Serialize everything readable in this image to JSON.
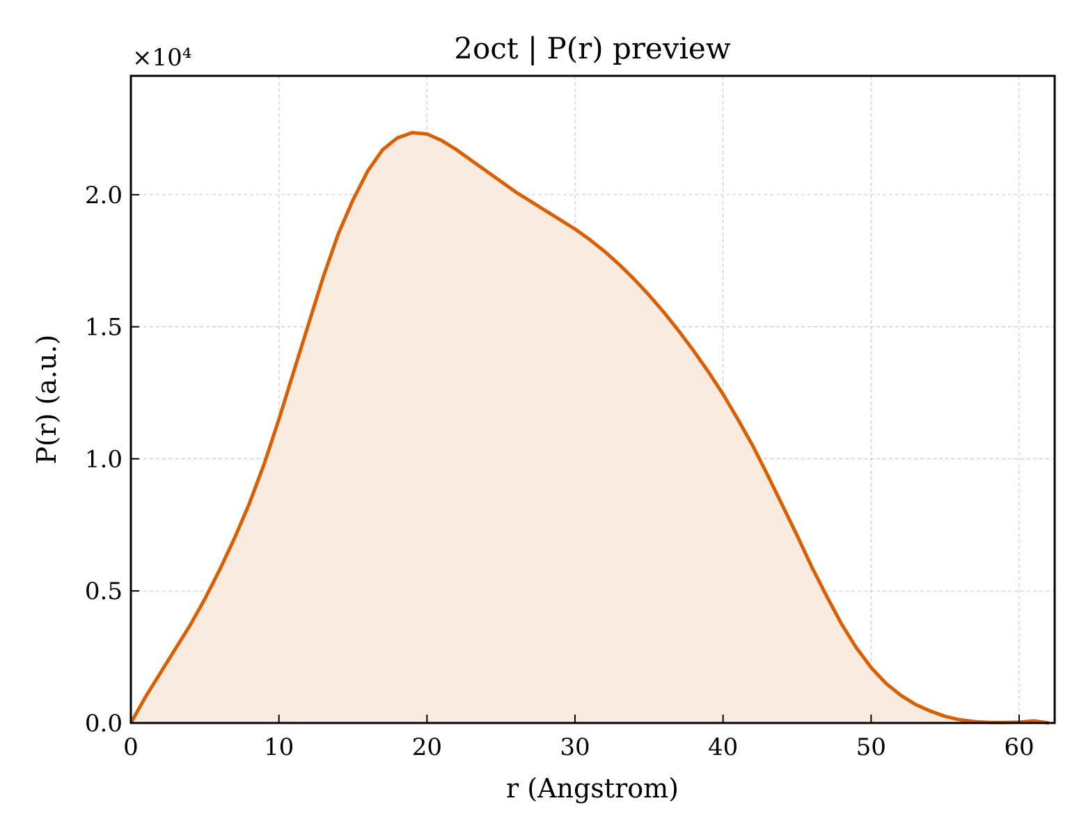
{
  "chart_data": {
    "type": "area",
    "title": "2oct | P(r) preview",
    "xlabel": "r (Angstrom)",
    "ylabel": "P(r) (a.u.)",
    "y_offset_text": "×10⁴",
    "xlim": [
      0,
      62.4
    ],
    "ylim": [
      0,
      2.45
    ],
    "x_ticks": [
      0,
      10,
      20,
      30,
      40,
      50,
      60
    ],
    "y_ticks": [
      0.0,
      0.5,
      1.0,
      1.5,
      2.0
    ],
    "x_tick_labels": [
      "0",
      "10",
      "20",
      "30",
      "40",
      "50",
      "60"
    ],
    "y_tick_labels": [
      "0.0",
      "0.5",
      "1.0",
      "1.5",
      "2.0"
    ],
    "grid": true,
    "line_color": "#d95f02",
    "fill_color": "#f9ebe0",
    "x": [
      0,
      1,
      2,
      3,
      4,
      5,
      6,
      7,
      8,
      9,
      10,
      11,
      12,
      13,
      14,
      15,
      16,
      17,
      18,
      19,
      20,
      21,
      22,
      23,
      24,
      25,
      26,
      27,
      28,
      29,
      30,
      31,
      32,
      33,
      34,
      35,
      36,
      37,
      38,
      39,
      40,
      41,
      42,
      43,
      44,
      45,
      46,
      47,
      48,
      49,
      50,
      51,
      52,
      53,
      54,
      55,
      56,
      57,
      58,
      59,
      60,
      61,
      62
    ],
    "y": [
      0.0,
      0.1,
      0.19,
      0.28,
      0.37,
      0.47,
      0.58,
      0.7,
      0.83,
      0.98,
      1.15,
      1.33,
      1.51,
      1.69,
      1.85,
      1.98,
      2.09,
      2.17,
      2.215,
      2.235,
      2.23,
      2.205,
      2.17,
      2.13,
      2.09,
      2.05,
      2.01,
      1.975,
      1.94,
      1.905,
      1.87,
      1.83,
      1.785,
      1.735,
      1.68,
      1.62,
      1.555,
      1.485,
      1.41,
      1.33,
      1.245,
      1.15,
      1.05,
      0.94,
      0.825,
      0.71,
      0.59,
      0.48,
      0.375,
      0.285,
      0.21,
      0.15,
      0.105,
      0.07,
      0.045,
      0.025,
      0.012,
      0.005,
      0.002,
      0.002,
      0.003,
      0.008,
      0.0
    ]
  }
}
